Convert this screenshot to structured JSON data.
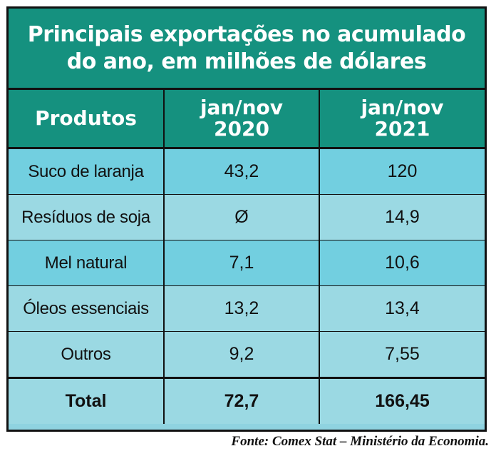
{
  "title": {
    "line1": "Principais exportações no acumulado",
    "line2": "do ano, em milhões de dólares"
  },
  "header": {
    "produtos": "Produtos",
    "col2020_line1": "jan/nov",
    "col2020_line2": "2020",
    "col2021_line1": "jan/nov",
    "col2021_line2": "2021"
  },
  "rows": [
    {
      "produto": "Suco de laranja",
      "v2020": "43,2",
      "v2021": "120"
    },
    {
      "produto": "Resíduos de soja",
      "v2020": "Ø",
      "v2021": "14,9"
    },
    {
      "produto": "Mel natural",
      "v2020": "7,1",
      "v2021": "10,6"
    },
    {
      "produto": "Óleos essenciais",
      "v2020": "13,2",
      "v2021": "13,4"
    },
    {
      "produto": "Outros",
      "v2020": "9,2",
      "v2021": "7,55"
    }
  ],
  "total": {
    "label": "Total",
    "v2020": "72,7",
    "v2021": "166,45"
  },
  "source": "Fonte: Comex Stat – Ministério da Economia.",
  "colors": {
    "header_teal": "#15917f",
    "row_dark": "#72cfe0",
    "row_light": "#9bd9e3"
  }
}
